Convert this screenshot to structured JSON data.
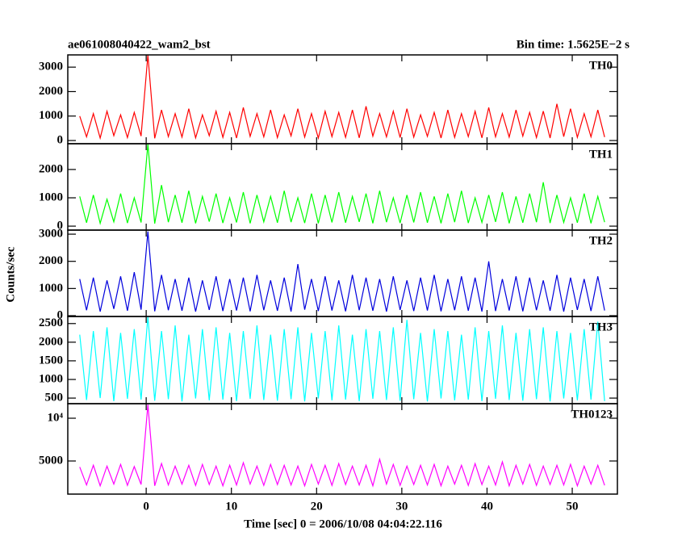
{
  "chart_data": {
    "type": "line",
    "title": "ae061008040422_wam2_bst",
    "subtitle": "Bin time: 1.5625E−2 s",
    "x_label": "Time [sec] 0 = 2006/10/08 04:04:22.116",
    "y_label": "Counts/sec",
    "xlim": [
      -9.2,
      55.3
    ],
    "xticks": [
      0,
      10,
      20,
      30,
      40,
      50
    ],
    "x": [
      -7.8,
      -7.0,
      -6.2,
      -5.4,
      -4.6,
      -3.8,
      -3.0,
      -2.2,
      -1.4,
      -0.6,
      0.2,
      1.0,
      1.8,
      2.6,
      3.4,
      4.2,
      5.0,
      5.8,
      6.6,
      7.4,
      8.2,
      9.0,
      9.8,
      10.6,
      11.4,
      12.2,
      13.0,
      13.8,
      14.6,
      15.4,
      16.2,
      17.0,
      17.8,
      18.6,
      19.4,
      20.2,
      21.0,
      21.8,
      22.6,
      23.4,
      24.2,
      25.0,
      25.8,
      26.6,
      27.4,
      28.2,
      29.0,
      29.8,
      30.6,
      31.4,
      32.2,
      33.0,
      33.8,
      34.6,
      35.4,
      36.2,
      37.0,
      37.8,
      38.6,
      39.4,
      40.2,
      41.0,
      41.8,
      42.6,
      43.4,
      44.2,
      45.0,
      45.8,
      46.6,
      47.4,
      48.2,
      49.0,
      49.8,
      50.6,
      51.4,
      52.2,
      53.0,
      53.8
    ],
    "series": [
      {
        "name": "TH0",
        "color": "#ff0000",
        "ylim": [
          -130,
          3500
        ],
        "yticks": [
          0,
          1000,
          2000,
          3000
        ],
        "values": [
          1000,
          150,
          1100,
          100,
          1200,
          200,
          1050,
          120,
          1150,
          180,
          3500,
          90,
          1250,
          160,
          1100,
          140,
          1300,
          110,
          1050,
          200,
          1200,
          130,
          1150,
          100,
          1350,
          170,
          1100,
          150,
          1250,
          120,
          1050,
          190,
          1300,
          140,
          1100,
          100,
          1200,
          160,
          1150,
          130,
          1250,
          110,
          1400,
          180,
          1100,
          150,
          1200,
          120,
          1300,
          140,
          1050,
          170,
          1150,
          100,
          1250,
          130,
          1100,
          160,
          1200,
          110,
          1350,
          150,
          1100,
          140,
          1250,
          180,
          1150,
          120,
          1200,
          100,
          1500,
          160,
          1300,
          130,
          1100,
          150,
          1250,
          140
        ]
      },
      {
        "name": "TH1",
        "color": "#00ff00",
        "ylim": [
          -140,
          2910
        ],
        "yticks": [
          0,
          1000,
          2000
        ],
        "values": [
          1050,
          120,
          1100,
          100,
          950,
          150,
          1150,
          110,
          1000,
          130,
          2900,
          90,
          1450,
          140,
          1100,
          120,
          1250,
          100,
          1050,
          160,
          1150,
          110,
          1000,
          130,
          1200,
          100,
          1100,
          150,
          1050,
          120,
          1250,
          140,
          1000,
          110,
          1150,
          100,
          1100,
          130,
          1200,
          120,
          1050,
          150,
          1150,
          100,
          1250,
          140,
          1000,
          110,
          1100,
          130,
          1200,
          120,
          1050,
          100,
          1150,
          140,
          1250,
          110,
          1000,
          130,
          1100,
          150,
          1200,
          100,
          1050,
          120,
          1150,
          140,
          1550,
          110,
          1100,
          130,
          1000,
          120,
          1150,
          100,
          1050,
          140
        ]
      },
      {
        "name": "TH2",
        "color": "#0000dd",
        "ylim": [
          -30,
          3150
        ],
        "yticks": [
          0,
          1000,
          2000,
          3000
        ],
        "values": [
          1350,
          200,
          1400,
          150,
          1300,
          250,
          1450,
          180,
          1600,
          220,
          3100,
          160,
          1500,
          200,
          1350,
          180,
          1400,
          150,
          1300,
          210,
          1450,
          170,
          1350,
          190,
          1400,
          160,
          1500,
          200,
          1300,
          180,
          1400,
          150,
          1900,
          220,
          1350,
          170,
          1450,
          190,
          1300,
          160,
          1500,
          200,
          1400,
          180,
          1350,
          150,
          1450,
          210,
          1300,
          170,
          1400,
          190,
          1500,
          160,
          1350,
          200,
          1450,
          180,
          1400,
          150,
          2000,
          170,
          1350,
          190,
          1450,
          160,
          1400,
          200,
          1300,
          180,
          1500,
          150,
          1400,
          210,
          1350,
          170,
          1450,
          190
        ]
      },
      {
        "name": "TH3",
        "color": "#00ffff",
        "ylim": [
          350,
          2690
        ],
        "yticks": [
          500,
          1000,
          1500,
          2000,
          2500
        ],
        "values": [
          2200,
          450,
          2300,
          500,
          2400,
          420,
          2250,
          480,
          2350,
          460,
          2690,
          430,
          2300,
          470,
          2450,
          410,
          2200,
          490,
          2350,
          440,
          2400,
          460,
          2250,
          420,
          2300,
          480,
          2450,
          450,
          2200,
          430,
          2350,
          470,
          2400,
          410,
          2250,
          490,
          2300,
          440,
          2450,
          460,
          2200,
          420,
          2350,
          480,
          2300,
          450,
          2400,
          430,
          2600,
          470,
          2250,
          410,
          2350,
          490,
          2300,
          440,
          2200,
          460,
          2400,
          420,
          2300,
          480,
          2450,
          450,
          2250,
          430,
          2350,
          470,
          2400,
          410,
          2300,
          490,
          2250,
          440,
          2350,
          460,
          2550,
          420
        ]
      },
      {
        "name": "TH0123",
        "color": "#ff00ff",
        "ylim": [
          1130,
          11700
        ],
        "yticks": [
          5000,
          {
            "value": 10000,
            "label": "10⁴"
          }
        ],
        "values": [
          4300,
          2200,
          4500,
          2100,
          4400,
          2300,
          4600,
          2150,
          4350,
          2250,
          11600,
          2100,
          4700,
          2200,
          4400,
          2300,
          4500,
          2150,
          4600,
          2250,
          4400,
          2100,
          4500,
          2200,
          4800,
          2300,
          4400,
          2150,
          4600,
          2250,
          4500,
          2200,
          4400,
          2100,
          4600,
          2300,
          4500,
          2150,
          4700,
          2250,
          4400,
          2200,
          4500,
          2100,
          5200,
          2300,
          4600,
          2150,
          4400,
          2250,
          4500,
          2200,
          4600,
          2100,
          4400,
          2300,
          4500,
          2150,
          4700,
          2250,
          4400,
          2200,
          4900,
          2100,
          4500,
          2300,
          4600,
          2150,
          4400,
          2250,
          4500,
          2200,
          4600,
          2100,
          4400,
          2300,
          4500,
          2150
        ]
      }
    ]
  }
}
